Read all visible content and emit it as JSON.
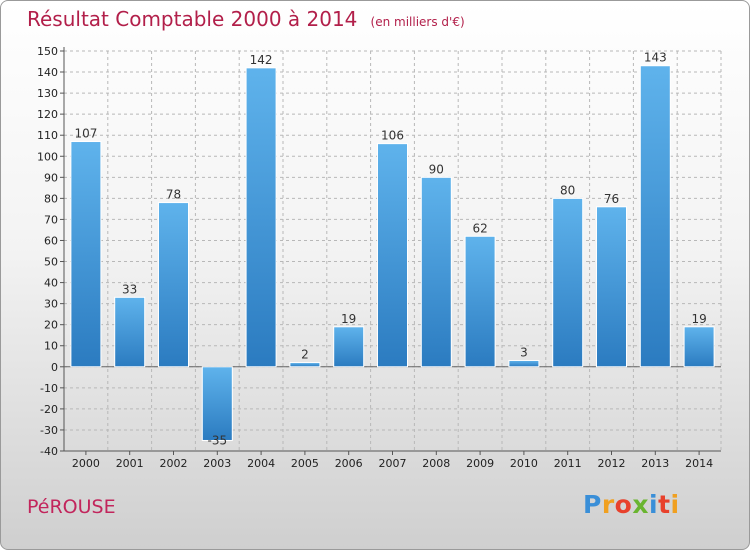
{
  "title": "Résultat Comptable 2000 à 2014",
  "subtitle": "(en milliers d'€)",
  "commune": "PéROUSE",
  "logo": {
    "letters": [
      "P",
      "r",
      "o",
      "x",
      "i",
      "t",
      "i"
    ],
    "colors": [
      "#3a8fd8",
      "#f0a020",
      "#e8412c",
      "#6ab530",
      "#3a8fd8",
      "#e8412c",
      "#f0a020"
    ]
  },
  "colors": {
    "bar_light": "#5fb3ec",
    "bar_dark": "#2b7bc0",
    "title": "#b21f4a",
    "grid": "#b8b8b8"
  },
  "chart_data": {
    "type": "bar",
    "title": "Résultat Comptable 2000 à 2014",
    "subtitle": "(en milliers d'€)",
    "categories": [
      "2000",
      "2001",
      "2002",
      "2003",
      "2004",
      "2005",
      "2006",
      "2007",
      "2008",
      "2009",
      "2010",
      "2011",
      "2012",
      "2013",
      "2014"
    ],
    "values": [
      107,
      33,
      78,
      -35,
      142,
      2,
      19,
      106,
      90,
      62,
      3,
      80,
      76,
      143,
      19
    ],
    "ylim": [
      -40,
      150
    ],
    "yticks": [
      150,
      140,
      130,
      120,
      110,
      100,
      90,
      80,
      70,
      60,
      50,
      40,
      30,
      20,
      10,
      0,
      -10,
      -20,
      -30,
      -40
    ],
    "grid": true
  }
}
